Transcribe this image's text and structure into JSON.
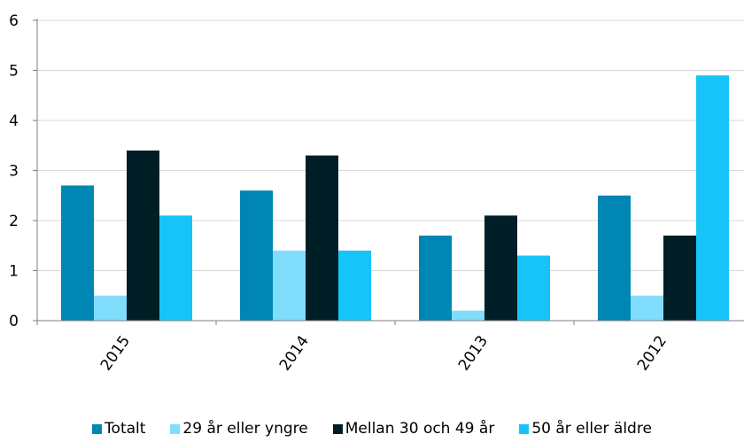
{
  "chart_data": {
    "type": "bar",
    "categories": [
      "2015",
      "2014",
      "2013",
      "2012"
    ],
    "series": [
      {
        "name": "Totalt",
        "color": "#0086B3",
        "values": [
          2.7,
          2.6,
          1.7,
          2.5
        ]
      },
      {
        "name": "29 år eller yngre",
        "color": "#80DDFC",
        "values": [
          0.5,
          1.4,
          0.2,
          0.5
        ]
      },
      {
        "name": "Mellan 30 och 49 år",
        "color": "#001E25",
        "values": [
          3.4,
          3.3,
          2.1,
          1.7
        ]
      },
      {
        "name": "50 år eller äldre",
        "color": "#17C4F9",
        "values": [
          2.1,
          1.4,
          1.3,
          4.9
        ]
      }
    ],
    "ylim": [
      0,
      6
    ],
    "yticks": [
      "0",
      "1",
      "2",
      "3",
      "4",
      "5",
      "6"
    ],
    "grid": true,
    "legend_position": "bottom"
  }
}
